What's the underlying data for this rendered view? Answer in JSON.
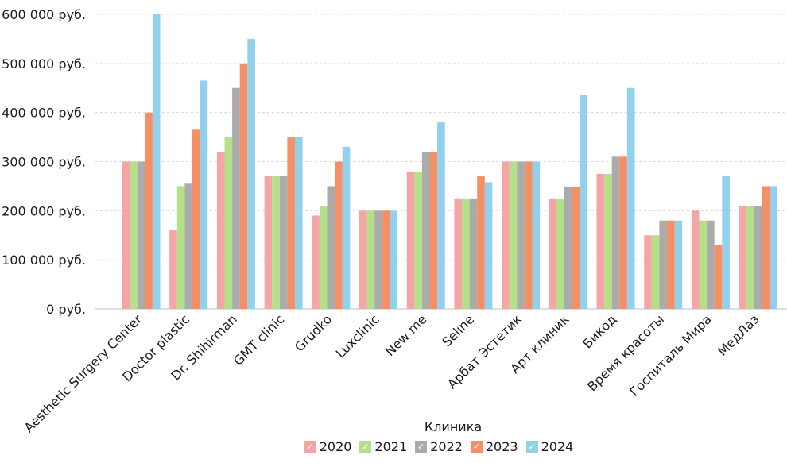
{
  "chart_data": {
    "type": "bar",
    "title": "",
    "xlabel": "",
    "ylabel": "",
    "ylim": [
      0,
      600000
    ],
    "y_ticks": [
      0,
      100000,
      200000,
      300000,
      400000,
      500000,
      600000
    ],
    "y_tick_labels": [
      "0 руб.",
      "100 000 руб.",
      "200 000 руб.",
      "300 000 руб.",
      "400 000 руб.",
      "500 000 руб.",
      "600 000 руб."
    ],
    "grid": true,
    "legend_title": "Клиника",
    "legend_placement": "bottom",
    "categories": [
      "Aesthetic Surgery Center",
      "Doctor plastic",
      "Dr. Shihirman",
      "GMT clinic",
      "Grudko",
      "Luxclinic",
      "New me",
      "Seline",
      "Арбат Эстетик",
      "Арт клиник",
      "Бикод",
      "Время красоты",
      "Госпиталь Мира",
      "МедЛаз"
    ],
    "series": [
      {
        "name": "2020",
        "color": "#f4a6a6",
        "values": [
          300000,
          160000,
          320000,
          270000,
          190000,
          200000,
          280000,
          225000,
          300000,
          225000,
          275000,
          150000,
          200000,
          210000
        ]
      },
      {
        "name": "2021",
        "color": "#b5e08a",
        "values": [
          300000,
          250000,
          350000,
          270000,
          210000,
          200000,
          280000,
          225000,
          300000,
          225000,
          275000,
          150000,
          180000,
          210000
        ]
      },
      {
        "name": "2022",
        "color": "#ababab",
        "values": [
          300000,
          255000,
          450000,
          270000,
          250000,
          200000,
          320000,
          225000,
          300000,
          248000,
          310000,
          180000,
          180000,
          210000
        ]
      },
      {
        "name": "2023",
        "color": "#f59066",
        "values": [
          400000,
          365000,
          500000,
          350000,
          300000,
          200000,
          320000,
          270000,
          300000,
          248000,
          310000,
          180000,
          130000,
          250000
        ]
      },
      {
        "name": "2024",
        "color": "#92d0ec",
        "values": [
          600000,
          465000,
          550000,
          350000,
          330000,
          200000,
          380000,
          258000,
          300000,
          435000,
          450000,
          180000,
          270000,
          250000
        ]
      }
    ]
  },
  "legend_check_glyph": "✓"
}
